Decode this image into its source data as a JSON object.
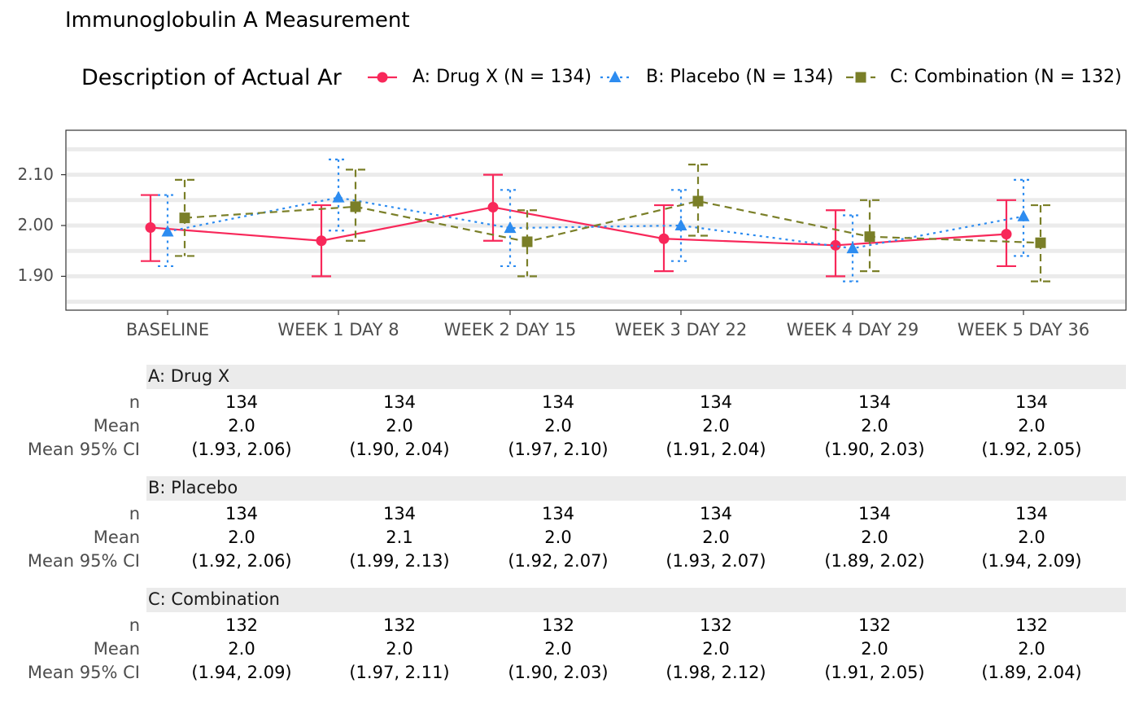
{
  "chart_data": {
    "type": "line",
    "title": "Immunoglobulin A Measurement",
    "legend_title": "Description of Actual Ar",
    "legend_position": "top",
    "grid": true,
    "ylim": [
      1.83,
      2.18
    ],
    "yticks": [
      "1.90",
      "2.00",
      "2.10"
    ],
    "categories": [
      "BASELINE",
      "WEEK 1 DAY 8",
      "WEEK 2 DAY 15",
      "WEEK 3 DAY 22",
      "WEEK 4 DAY 29",
      "WEEK 5 DAY 36"
    ],
    "series": [
      {
        "name": "A: Drug X (N = 134)",
        "color": "#F8285A",
        "marker": "circle",
        "line": "solid",
        "mean": [
          1.996,
          1.97,
          2.036,
          1.974,
          1.961,
          1.983
        ],
        "lower": [
          1.93,
          1.9,
          1.97,
          1.91,
          1.9,
          1.92
        ],
        "upper": [
          2.06,
          2.04,
          2.1,
          2.04,
          2.03,
          2.05
        ]
      },
      {
        "name": "B: Placebo (N = 134)",
        "color": "#2D8CF0",
        "marker": "triangle",
        "line": "dotted",
        "mean": [
          1.988,
          2.055,
          1.995,
          2.0,
          1.955,
          2.018
        ],
        "lower": [
          1.92,
          1.99,
          1.92,
          1.93,
          1.89,
          1.94
        ],
        "upper": [
          2.06,
          2.13,
          2.07,
          2.07,
          2.02,
          2.09
        ]
      },
      {
        "name": "C: Combination (N = 132)",
        "color": "#7A7F28",
        "marker": "square",
        "line": "dashed",
        "mean": [
          2.015,
          2.037,
          1.968,
          2.048,
          1.978,
          1.966
        ],
        "lower": [
          1.94,
          1.97,
          1.9,
          1.98,
          1.91,
          1.89
        ],
        "upper": [
          2.09,
          2.11,
          2.03,
          2.12,
          2.05,
          2.04
        ]
      }
    ]
  },
  "table": {
    "row_labels": [
      "n",
      "Mean",
      "Mean 95% CI"
    ],
    "groups": [
      {
        "name": "A: Drug X",
        "n": [
          "134",
          "134",
          "134",
          "134",
          "134",
          "134"
        ],
        "mean": [
          "2.0",
          "2.0",
          "2.0",
          "2.0",
          "2.0",
          "2.0"
        ],
        "ci": [
          "(1.93, 2.06)",
          "(1.90, 2.04)",
          "(1.97, 2.10)",
          "(1.91, 2.04)",
          "(1.90, 2.03)",
          "(1.92, 2.05)"
        ]
      },
      {
        "name": "B: Placebo",
        "n": [
          "134",
          "134",
          "134",
          "134",
          "134",
          "134"
        ],
        "mean": [
          "2.0",
          "2.1",
          "2.0",
          "2.0",
          "2.0",
          "2.0"
        ],
        "ci": [
          "(1.92, 2.06)",
          "(1.99, 2.13)",
          "(1.92, 2.07)",
          "(1.93, 2.07)",
          "(1.89, 2.02)",
          "(1.94, 2.09)"
        ]
      },
      {
        "name": "C: Combination",
        "n": [
          "132",
          "132",
          "132",
          "132",
          "132",
          "132"
        ],
        "mean": [
          "2.0",
          "2.0",
          "2.0",
          "2.0",
          "2.0",
          "2.0"
        ],
        "ci": [
          "(1.94, 2.09)",
          "(1.97, 2.11)",
          "(1.90, 2.03)",
          "(1.98, 2.12)",
          "(1.91, 2.05)",
          "(1.89, 2.04)"
        ]
      }
    ]
  }
}
